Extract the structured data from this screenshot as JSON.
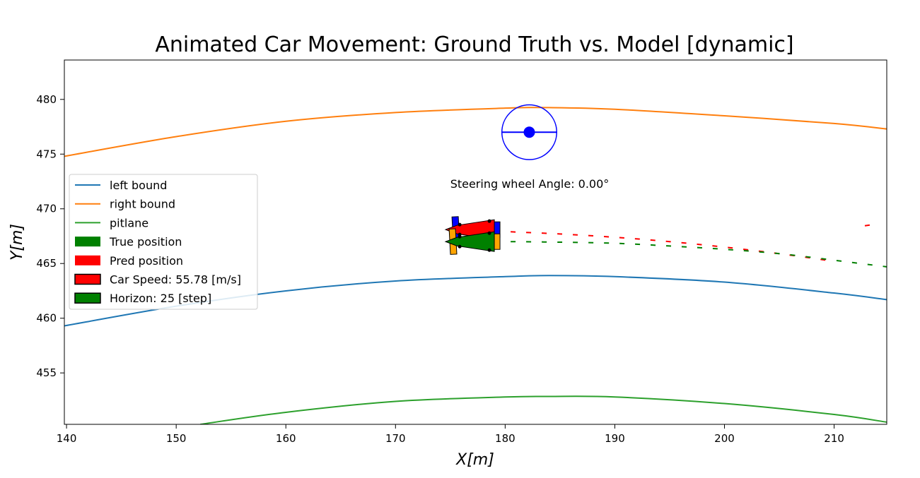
{
  "chart_data": {
    "type": "line",
    "title": "Animated Car Movement: Ground Truth vs. Model [dynamic]",
    "xlabel": "X[m]",
    "ylabel": "Y[m]",
    "xlim": [
      139.8,
      214.8
    ],
    "ylim": [
      450.3,
      483.6
    ],
    "xticks": [
      "140",
      "150",
      "160",
      "170",
      "180",
      "190",
      "200",
      "210"
    ],
    "yticks": [
      "455",
      "460",
      "465",
      "470",
      "475",
      "480"
    ],
    "grid": false,
    "legend_position": "center-left",
    "series": [
      {
        "name": "left bound",
        "color": "#1f77b4",
        "style": "solid",
        "x": [
          139.8,
          150,
          160,
          170,
          180,
          184,
          190,
          200,
          210,
          214.8
        ],
        "y": [
          459.3,
          461.1,
          462.5,
          463.4,
          463.8,
          463.9,
          463.8,
          463.3,
          462.3,
          461.7
        ]
      },
      {
        "name": "right bound",
        "color": "#ff7f0e",
        "style": "solid",
        "x": [
          139.8,
          150,
          160,
          170,
          180,
          184,
          190,
          200,
          210,
          214.8
        ],
        "y": [
          474.8,
          476.6,
          478.0,
          478.8,
          479.2,
          479.25,
          479.1,
          478.5,
          477.8,
          477.3
        ]
      },
      {
        "name": "pitlane",
        "color": "#2ca02c",
        "style": "solid",
        "x": [
          152.2,
          160,
          170,
          180,
          184,
          190,
          200,
          210,
          214.8
        ],
        "y": [
          450.3,
          451.4,
          452.4,
          452.8,
          452.85,
          452.8,
          452.2,
          451.2,
          450.5
        ]
      },
      {
        "name": "",
        "color": "#ff0000",
        "style": "dashed",
        "x": [
          180.5,
          185,
          190,
          195,
          200,
          205,
          210
        ],
        "y": [
          467.9,
          467.7,
          467.4,
          467.0,
          466.5,
          465.9,
          465.2
        ]
      },
      {
        "name": "",
        "color": "#008000",
        "style": "dashed",
        "x": [
          180.5,
          185,
          190,
          195,
          200,
          205,
          210,
          214.8
        ],
        "y": [
          467.0,
          466.95,
          466.85,
          466.6,
          466.3,
          465.9,
          465.3,
          464.7
        ]
      },
      {
        "name": "",
        "color": "#ff0000",
        "style": "dashed",
        "x": [
          212.8,
          213.8
        ],
        "y": [
          468.45,
          468.6
        ]
      }
    ],
    "cars": {
      "true_position": {
        "x": 177.4,
        "y": 467.0,
        "color": "#008000"
      },
      "pred_position": {
        "x": 177.4,
        "y": 468.1,
        "color": "#ff0000"
      }
    },
    "steering_wheel": {
      "center_x": 182.2,
      "center_y": 477.0,
      "radius_x": 2.5,
      "color": "#0000ff"
    },
    "annotation": "Steering wheel Angle: 0.00°",
    "legend": [
      {
        "label": "left bound",
        "kind": "line",
        "color": "#1f77b4"
      },
      {
        "label": "right bound",
        "kind": "line",
        "color": "#ff7f0e"
      },
      {
        "label": "pitlane",
        "kind": "line",
        "color": "#2ca02c"
      },
      {
        "label": "True position",
        "kind": "patch",
        "color": "#008000"
      },
      {
        "label": "Pred position",
        "kind": "patch",
        "color": "#ff0000"
      },
      {
        "label": "Car Speed: 55.78 [m/s]",
        "kind": "patch-outlined",
        "color": "#ff0000"
      },
      {
        "label": "Horizon: 25 [step]",
        "kind": "patch-outlined",
        "color": "#008000"
      }
    ]
  }
}
